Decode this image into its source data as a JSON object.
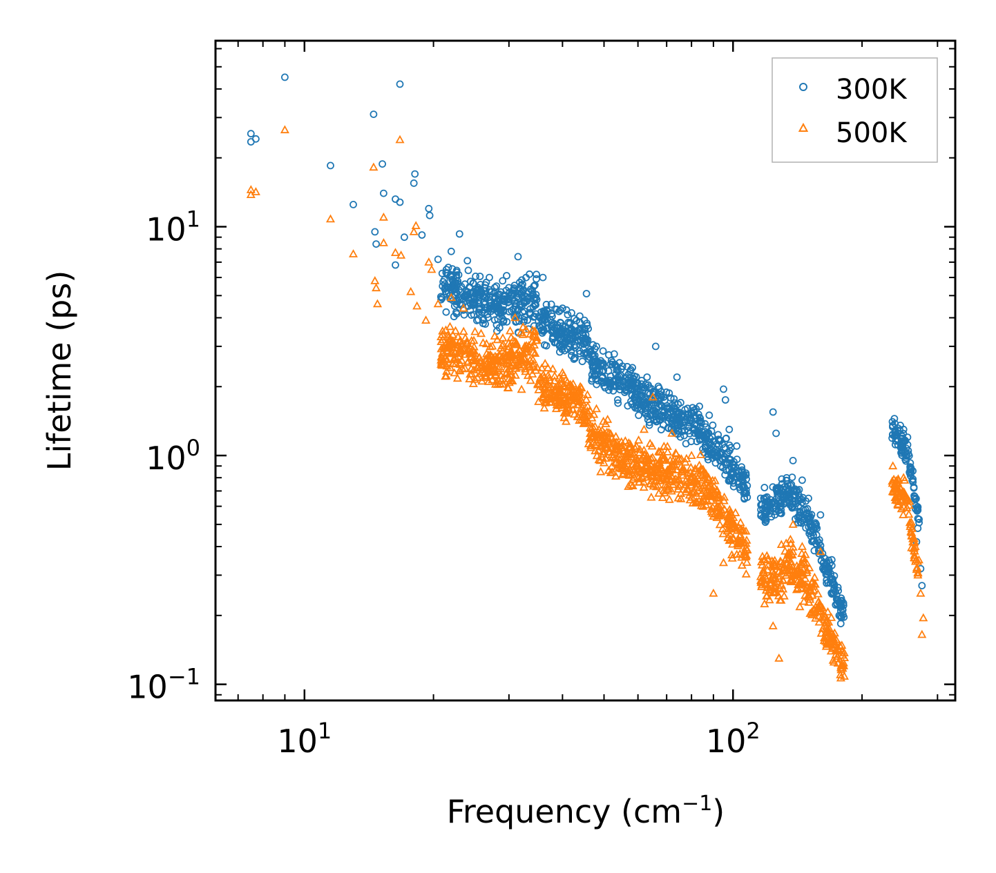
{
  "chart_data": {
    "type": "scatter",
    "title": "",
    "xlabel": "Frequency (cm",
    "xlabel_sup": "−1",
    "xlabel_end": ")",
    "ylabel": "Lifetime (ps)",
    "xscale": "log",
    "yscale": "log",
    "xlim": [
      6.2,
      330
    ],
    "ylim": [
      0.085,
      65
    ],
    "x_ticks": [
      {
        "value": 10,
        "base": "10",
        "exp": "1"
      },
      {
        "value": 100,
        "base": "10",
        "exp": "2"
      }
    ],
    "y_ticks": [
      {
        "value": 0.1,
        "base": "10",
        "exp": "−1"
      },
      {
        "value": 1,
        "base": "10",
        "exp": "0"
      },
      {
        "value": 10,
        "base": "10",
        "exp": "1"
      }
    ],
    "legend_position": "top-right",
    "series": [
      {
        "name": "300K",
        "marker": "circle",
        "color": "#1f77b4",
        "points": [
          [
            7.5,
            25.5
          ],
          [
            7.5,
            23.5
          ],
          [
            7.7,
            24.2
          ],
          [
            9.0,
            45.0
          ],
          [
            11.5,
            18.5
          ],
          [
            13.0,
            12.5
          ],
          [
            14.5,
            31.0
          ],
          [
            15.2,
            18.8
          ],
          [
            15.3,
            14.0
          ],
          [
            14.6,
            9.5
          ],
          [
            14.7,
            8.4
          ],
          [
            16.3,
            13.2
          ],
          [
            16.7,
            12.8
          ],
          [
            16.7,
            42.0
          ],
          [
            17.1,
            9.0
          ],
          [
            18.0,
            15.5
          ],
          [
            18.1,
            17.0
          ],
          [
            18.8,
            9.2
          ],
          [
            19.5,
            12.0
          ],
          [
            19.6,
            11.2
          ],
          [
            16.3,
            6.8
          ],
          [
            20.5,
            7.2
          ],
          [
            21.0,
            5.5
          ],
          [
            22.0,
            7.8
          ],
          [
            23.0,
            9.3
          ],
          [
            24.0,
            7.1
          ],
          [
            27.0,
            6.0
          ],
          [
            29.0,
            5.8
          ],
          [
            31.5,
            7.4
          ],
          [
            33.5,
            6.2
          ],
          [
            36.0,
            6.0
          ],
          [
            40.0,
            4.4
          ],
          [
            42.0,
            4.2
          ],
          [
            45.5,
            5.1
          ],
          [
            45.0,
            3.9
          ],
          [
            48.0,
            3.0
          ],
          [
            53.0,
            2.5
          ],
          [
            58.0,
            2.1
          ],
          [
            63.0,
            2.2
          ],
          [
            66.0,
            3.0
          ],
          [
            68.0,
            1.9
          ],
          [
            74.0,
            2.2
          ],
          [
            82.0,
            1.6
          ],
          [
            88.0,
            1.5
          ],
          [
            95.0,
            1.95
          ],
          [
            96.0,
            1.75
          ],
          [
            98.0,
            1.3
          ],
          [
            102.0,
            1.1
          ],
          [
            105.0,
            0.85
          ],
          [
            118.0,
            0.65
          ],
          [
            124.0,
            1.55
          ],
          [
            126.0,
            1.25
          ],
          [
            130.0,
            0.75
          ],
          [
            138.0,
            0.95
          ],
          [
            145.0,
            0.78
          ],
          [
            150.0,
            0.65
          ],
          [
            160.0,
            0.55
          ],
          [
            170.0,
            0.35
          ],
          [
            178.0,
            0.22
          ],
          [
            238.0,
            1.45
          ],
          [
            250.0,
            1.3
          ],
          [
            260.0,
            0.85
          ],
          [
            268.0,
            0.42
          ],
          [
            274.0,
            0.32
          ],
          [
            276.0,
            0.27
          ]
        ],
        "bands": [
          {
            "x_start": 20.8,
            "x_end": 28.0,
            "y_start": 5.5,
            "y_end": 4.5,
            "spread": 0.14
          },
          {
            "x_start": 28.0,
            "x_end": 35.0,
            "y_start": 4.5,
            "y_end": 4.9,
            "spread": 0.16
          },
          {
            "x_start": 35.0,
            "x_end": 46.0,
            "y_start": 3.9,
            "y_end": 3.1,
            "spread": 0.13
          },
          {
            "x_start": 46.0,
            "x_end": 62.0,
            "y_start": 2.5,
            "y_end": 1.8,
            "spread": 0.13
          },
          {
            "x_start": 62.0,
            "x_end": 85.0,
            "y_start": 1.7,
            "y_end": 1.3,
            "spread": 0.14
          },
          {
            "x_start": 85.0,
            "x_end": 108.0,
            "y_start": 1.25,
            "y_end": 0.72,
            "spread": 0.12
          },
          {
            "x_start": 116.0,
            "x_end": 132.0,
            "y_start": 0.58,
            "y_end": 0.68,
            "spread": 0.12
          },
          {
            "x_start": 132.0,
            "x_end": 158.0,
            "y_start": 0.72,
            "y_end": 0.45,
            "spread": 0.13
          },
          {
            "x_start": 158.0,
            "x_end": 182.0,
            "y_start": 0.4,
            "y_end": 0.2,
            "spread": 0.1
          },
          {
            "x_start": 235.0,
            "x_end": 258.0,
            "y_start": 1.3,
            "y_end": 1.0,
            "spread": 0.09
          },
          {
            "x_start": 258.0,
            "x_end": 272.0,
            "y_start": 0.9,
            "y_end": 0.52,
            "spread": 0.08
          }
        ]
      },
      {
        "name": "500K",
        "marker": "triangle",
        "color": "#ff7f0e",
        "points": [
          [
            7.5,
            14.5
          ],
          [
            7.5,
            13.8
          ],
          [
            7.7,
            14.2
          ],
          [
            9.0,
            26.5
          ],
          [
            11.5,
            10.8
          ],
          [
            13.0,
            7.6
          ],
          [
            14.5,
            18.2
          ],
          [
            14.6,
            5.8
          ],
          [
            14.7,
            5.4
          ],
          [
            14.8,
            4.6
          ],
          [
            15.3,
            11.0
          ],
          [
            15.3,
            8.5
          ],
          [
            16.3,
            7.7
          ],
          [
            16.7,
            24.0
          ],
          [
            16.8,
            7.5
          ],
          [
            17.7,
            5.2
          ],
          [
            18.0,
            9.5
          ],
          [
            18.2,
            10.1
          ],
          [
            18.3,
            4.5
          ],
          [
            19.5,
            7.0
          ],
          [
            19.8,
            6.5
          ],
          [
            19.2,
            3.9
          ],
          [
            20.5,
            4.6
          ],
          [
            21.0,
            3.5
          ],
          [
            22.0,
            4.9
          ],
          [
            23.5,
            4.4
          ],
          [
            31.0,
            4.0
          ],
          [
            34.5,
            3.5
          ],
          [
            40.0,
            2.3
          ],
          [
            44.0,
            2.0
          ],
          [
            48.0,
            1.6
          ],
          [
            55.0,
            1.1
          ],
          [
            62.0,
            1.3
          ],
          [
            65.0,
            1.8
          ],
          [
            72.0,
            1.25
          ],
          [
            80.0,
            1.0
          ],
          [
            95.0,
            0.34
          ],
          [
            90.0,
            0.25
          ],
          [
            104.0,
            0.45
          ],
          [
            118.0,
            0.35
          ],
          [
            124.0,
            0.18
          ],
          [
            128.0,
            0.13
          ],
          [
            138.0,
            0.5
          ],
          [
            145.0,
            0.4
          ],
          [
            160.0,
            0.38
          ],
          [
            170.0,
            0.16
          ],
          [
            172.0,
            0.125
          ],
          [
            178.0,
            0.11
          ],
          [
            236.0,
            0.9
          ],
          [
            250.0,
            0.8
          ],
          [
            265.0,
            0.42
          ],
          [
            270.0,
            0.3
          ],
          [
            274.0,
            0.25
          ],
          [
            278.0,
            0.195
          ],
          [
            276.0,
            0.165
          ]
        ],
        "bands": [
          {
            "x_start": 20.8,
            "x_end": 28.0,
            "y_start": 2.9,
            "y_end": 2.5,
            "spread": 0.15
          },
          {
            "x_start": 28.0,
            "x_end": 35.0,
            "y_start": 2.5,
            "y_end": 2.9,
            "spread": 0.17
          },
          {
            "x_start": 35.0,
            "x_end": 46.0,
            "y_start": 2.1,
            "y_end": 1.6,
            "spread": 0.14
          },
          {
            "x_start": 46.0,
            "x_end": 62.0,
            "y_start": 1.2,
            "y_end": 0.85,
            "spread": 0.15
          },
          {
            "x_start": 62.0,
            "x_end": 85.0,
            "y_start": 0.9,
            "y_end": 0.75,
            "spread": 0.16
          },
          {
            "x_start": 85.0,
            "x_end": 108.0,
            "y_start": 0.75,
            "y_end": 0.38,
            "spread": 0.15
          },
          {
            "x_start": 116.0,
            "x_end": 132.0,
            "y_start": 0.28,
            "y_end": 0.3,
            "spread": 0.17
          },
          {
            "x_start": 132.0,
            "x_end": 158.0,
            "y_start": 0.36,
            "y_end": 0.24,
            "spread": 0.17
          },
          {
            "x_start": 158.0,
            "x_end": 182.0,
            "y_start": 0.2,
            "y_end": 0.12,
            "spread": 0.12
          },
          {
            "x_start": 235.0,
            "x_end": 258.0,
            "y_start": 0.75,
            "y_end": 0.6,
            "spread": 0.1
          },
          {
            "x_start": 258.0,
            "x_end": 272.0,
            "y_start": 0.5,
            "y_end": 0.3,
            "spread": 0.1
          }
        ]
      }
    ]
  }
}
